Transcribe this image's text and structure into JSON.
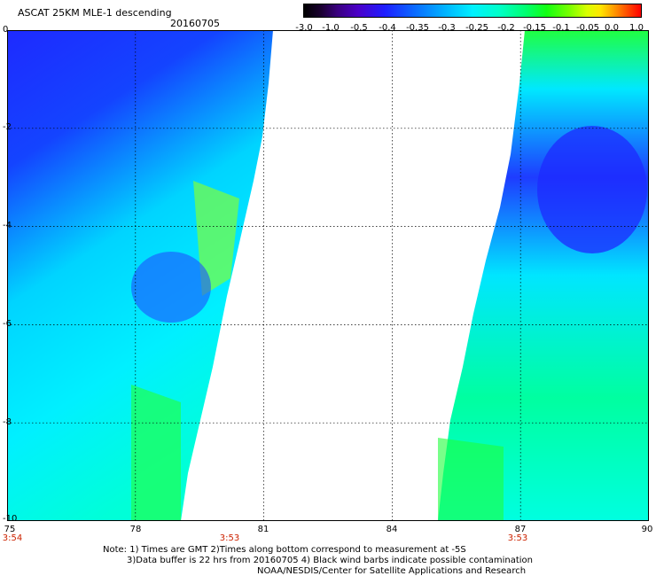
{
  "header": {
    "title": "ASCAT 25KM MLE-1 descending",
    "date": "20160705"
  },
  "colorbar": {
    "labels": [
      "-3.0",
      "-1.0",
      "-0.5",
      "-0.4",
      "-0.35",
      "-0.3",
      "-0.25",
      "-0.2",
      "-0.15",
      "-0.1",
      "-0.05",
      "0.0",
      "1.0"
    ]
  },
  "map": {
    "y_labels": [
      "0",
      "-2",
      "-4",
      "-6",
      "-8",
      "-10"
    ],
    "x_labels": [
      "75",
      "78",
      "81",
      "84",
      "87",
      "90"
    ],
    "x_range": [
      75,
      90
    ],
    "y_range": [
      0,
      -10
    ],
    "grid": true,
    "time_labels": [
      "3:54",
      "3:53",
      "3:53"
    ],
    "colors": {
      "swath_deep": "#1e2aff",
      "swath_mid": "#00e6ff",
      "swath_light": "#1eff5a",
      "grid": "#000000"
    }
  },
  "footer": {
    "line1": "Note: 1) Times are GMT 2)Times along bottom correspond to measurement at -5S",
    "line2": "3)Data buffer is 22 hrs from 20160705 4) Black wind barbs indicate possible contamination",
    "line3": "NOAA/NESDIS/Center for Satellite Applications and Research"
  }
}
